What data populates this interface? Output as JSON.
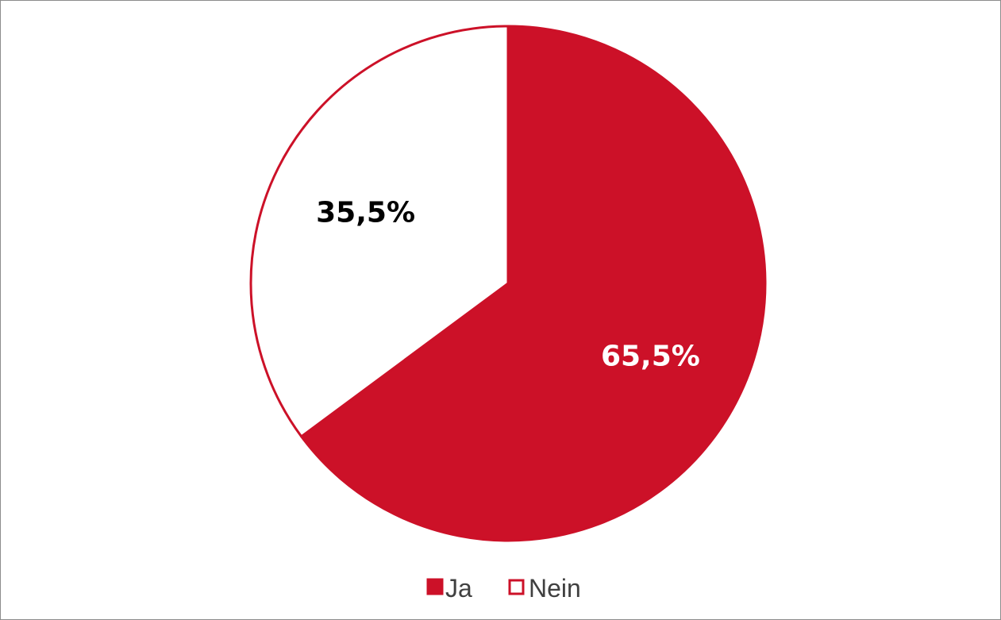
{
  "chart_data": {
    "type": "pie",
    "title": "",
    "start_angle_deg": 0,
    "direction": "clockwise",
    "slices": [
      {
        "name": "Ja",
        "label": "65,5%",
        "value": 65.5,
        "fill": "#cc1128",
        "label_color": "#ffffff"
      },
      {
        "name": "Nein",
        "label": "35,5%",
        "value": 35.5,
        "fill": "#ffffff",
        "label_color": "#000000"
      }
    ],
    "slice_stroke": "#cc1128",
    "legend": {
      "placement": "bottom",
      "items": [
        {
          "label": "Ja",
          "swatch_fill": "#cc1128",
          "swatch_stroke": "#cc1128"
        },
        {
          "label": "Nein",
          "swatch_fill": "#ffffff",
          "swatch_stroke": "#cc1128"
        }
      ]
    }
  }
}
